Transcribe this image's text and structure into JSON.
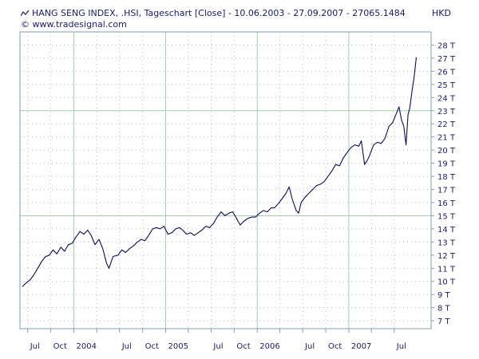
{
  "header": {
    "title": "HANG SENG INDEX, .HSI, Tageschart [Close] - 10.06.2003 - 27.09.2007 - 27065.1484",
    "copyright": "© www.tradesignal.com",
    "currency": "HKD"
  },
  "colors": {
    "line": "#0a0a5e",
    "grid_dot": "#b8b8b8",
    "grid_major": "#a8cca8",
    "frame": "#7f9db9",
    "text": "#1a1a6e"
  },
  "chart_data": {
    "type": "line",
    "title": "HANG SENG INDEX, .HSI, Tageschart [Close] - 10.06.2003 - 27.09.2007 - 27065.1484",
    "ylabel": "HKD",
    "xlabel": "",
    "ylim": [
      6.4,
      29.0
    ],
    "xlim": [
      "2003-05-31",
      "2007-11-25"
    ],
    "grid": true,
    "legend": "none",
    "y_ticks": [
      {
        "value": 7,
        "label": "7 T"
      },
      {
        "value": 8,
        "label": "8 T"
      },
      {
        "value": 9,
        "label": "9 T"
      },
      {
        "value": 10,
        "label": "10 T"
      },
      {
        "value": 11,
        "label": "11 T"
      },
      {
        "value": 12,
        "label": "12 T"
      },
      {
        "value": 13,
        "label": "13 T"
      },
      {
        "value": 14,
        "label": "14 T"
      },
      {
        "value": 15,
        "label": "15 T"
      },
      {
        "value": 16,
        "label": "16 T"
      },
      {
        "value": 17,
        "label": "17 T"
      },
      {
        "value": 18,
        "label": "18 T"
      },
      {
        "value": 19,
        "label": "19 T"
      },
      {
        "value": 20,
        "label": "20 T"
      },
      {
        "value": 21,
        "label": "21 T"
      },
      {
        "value": 22,
        "label": "22 T"
      },
      {
        "value": 23,
        "label": "23 T"
      },
      {
        "value": 24,
        "label": "24 T"
      },
      {
        "value": 25,
        "label": "25 T"
      },
      {
        "value": 26,
        "label": "26 T"
      },
      {
        "value": 27,
        "label": "27 T"
      },
      {
        "value": 28,
        "label": "28 T"
      }
    ],
    "y_major_lines": [
      15,
      23
    ],
    "x_ticks": [
      {
        "date": "2003-07-01",
        "label": "Jul",
        "major": false
      },
      {
        "date": "2003-10-01",
        "label": "Oct",
        "major": false
      },
      {
        "date": "2004-01-01",
        "label": "2004",
        "major": true
      },
      {
        "date": "2004-04-01",
        "label": "",
        "major": false
      },
      {
        "date": "2004-07-01",
        "label": "Jul",
        "major": false
      },
      {
        "date": "2004-10-01",
        "label": "Oct",
        "major": false
      },
      {
        "date": "2005-01-01",
        "label": "2005",
        "major": true
      },
      {
        "date": "2005-04-01",
        "label": "",
        "major": false
      },
      {
        "date": "2005-07-01",
        "label": "Jul",
        "major": false
      },
      {
        "date": "2005-10-01",
        "label": "Oct",
        "major": false
      },
      {
        "date": "2006-01-01",
        "label": "2006",
        "major": true
      },
      {
        "date": "2006-04-01",
        "label": "",
        "major": false
      },
      {
        "date": "2006-07-01",
        "label": "Jul",
        "major": false
      },
      {
        "date": "2006-10-01",
        "label": "Oct",
        "major": false
      },
      {
        "date": "2007-01-01",
        "label": "2007",
        "major": true
      },
      {
        "date": "2007-04-01",
        "label": "",
        "major": false
      },
      {
        "date": "2007-07-01",
        "label": "Jul",
        "major": false
      }
    ],
    "series": [
      {
        "color": "#0a0a5e",
        "points": [
          [
            "2003-06-10",
            9.6
          ],
          [
            "2003-06-25",
            9.9
          ],
          [
            "2003-07-10",
            10.1
          ],
          [
            "2003-07-25",
            10.5
          ],
          [
            "2003-08-10",
            11.0
          ],
          [
            "2003-08-25",
            11.5
          ],
          [
            "2003-09-10",
            11.9
          ],
          [
            "2003-09-25",
            12.0
          ],
          [
            "2003-10-10",
            12.4
          ],
          [
            "2003-10-25",
            12.1
          ],
          [
            "2003-11-10",
            12.6
          ],
          [
            "2003-11-25",
            12.3
          ],
          [
            "2003-12-10",
            12.8
          ],
          [
            "2003-12-25",
            12.9
          ],
          [
            "2004-01-10",
            13.4
          ],
          [
            "2004-01-25",
            13.8
          ],
          [
            "2004-02-10",
            13.6
          ],
          [
            "2004-02-25",
            13.9
          ],
          [
            "2004-03-10",
            13.5
          ],
          [
            "2004-03-25",
            12.8
          ],
          [
            "2004-04-10",
            13.2
          ],
          [
            "2004-04-25",
            12.5
          ],
          [
            "2004-05-10",
            11.4
          ],
          [
            "2004-05-20",
            11.0
          ],
          [
            "2004-06-05",
            11.9
          ],
          [
            "2004-06-25",
            12.0
          ],
          [
            "2004-07-10",
            12.4
          ],
          [
            "2004-07-25",
            12.2
          ],
          [
            "2004-08-10",
            12.5
          ],
          [
            "2004-08-25",
            12.7
          ],
          [
            "2004-09-10",
            13.0
          ],
          [
            "2004-09-25",
            13.2
          ],
          [
            "2004-10-10",
            13.1
          ],
          [
            "2004-10-25",
            13.5
          ],
          [
            "2004-11-10",
            14.0
          ],
          [
            "2004-11-25",
            14.1
          ],
          [
            "2004-12-10",
            14.0
          ],
          [
            "2004-12-25",
            14.2
          ],
          [
            "2005-01-10",
            13.6
          ],
          [
            "2005-01-25",
            13.7
          ],
          [
            "2005-02-10",
            14.0
          ],
          [
            "2005-02-25",
            14.1
          ],
          [
            "2005-03-10",
            13.9
          ],
          [
            "2005-03-25",
            13.6
          ],
          [
            "2005-04-10",
            13.7
          ],
          [
            "2005-04-25",
            13.5
          ],
          [
            "2005-05-10",
            13.7
          ],
          [
            "2005-05-25",
            13.9
          ],
          [
            "2005-06-10",
            14.2
          ],
          [
            "2005-06-25",
            14.1
          ],
          [
            "2005-07-10",
            14.4
          ],
          [
            "2005-07-25",
            14.9
          ],
          [
            "2005-08-10",
            15.3
          ],
          [
            "2005-08-25",
            15.0
          ],
          [
            "2005-09-10",
            15.2
          ],
          [
            "2005-09-25",
            15.3
          ],
          [
            "2005-10-10",
            14.8
          ],
          [
            "2005-10-25",
            14.3
          ],
          [
            "2005-11-10",
            14.6
          ],
          [
            "2005-11-25",
            14.8
          ],
          [
            "2005-12-10",
            14.9
          ],
          [
            "2005-12-25",
            14.9
          ],
          [
            "2006-01-10",
            15.2
          ],
          [
            "2006-01-25",
            15.4
          ],
          [
            "2006-02-10",
            15.3
          ],
          [
            "2006-02-25",
            15.6
          ],
          [
            "2006-03-10",
            15.6
          ],
          [
            "2006-03-25",
            15.9
          ],
          [
            "2006-04-10",
            16.3
          ],
          [
            "2006-04-25",
            16.7
          ],
          [
            "2006-05-08",
            17.2
          ],
          [
            "2006-05-20",
            16.3
          ],
          [
            "2006-06-05",
            15.4
          ],
          [
            "2006-06-15",
            15.2
          ],
          [
            "2006-06-25",
            16.0
          ],
          [
            "2006-07-10",
            16.4
          ],
          [
            "2006-07-25",
            16.7
          ],
          [
            "2006-08-10",
            17.0
          ],
          [
            "2006-08-25",
            17.3
          ],
          [
            "2006-09-10",
            17.4
          ],
          [
            "2006-09-25",
            17.6
          ],
          [
            "2006-10-10",
            18.0
          ],
          [
            "2006-10-25",
            18.4
          ],
          [
            "2006-11-10",
            18.9
          ],
          [
            "2006-11-25",
            18.8
          ],
          [
            "2006-12-10",
            19.4
          ],
          [
            "2006-12-25",
            19.8
          ],
          [
            "2007-01-10",
            20.2
          ],
          [
            "2007-01-25",
            20.4
          ],
          [
            "2007-02-10",
            20.3
          ],
          [
            "2007-02-20",
            20.7
          ],
          [
            "2007-03-05",
            18.9
          ],
          [
            "2007-03-15",
            19.2
          ],
          [
            "2007-03-25",
            19.6
          ],
          [
            "2007-04-10",
            20.4
          ],
          [
            "2007-04-25",
            20.6
          ],
          [
            "2007-05-10",
            20.5
          ],
          [
            "2007-05-25",
            20.9
          ],
          [
            "2007-06-10",
            21.8
          ],
          [
            "2007-06-25",
            22.1
          ],
          [
            "2007-07-10",
            22.8
          ],
          [
            "2007-07-20",
            23.3
          ],
          [
            "2007-07-30",
            22.3
          ],
          [
            "2007-08-08",
            21.8
          ],
          [
            "2007-08-17",
            20.4
          ],
          [
            "2007-08-25",
            22.7
          ],
          [
            "2007-09-01",
            23.2
          ],
          [
            "2007-09-10",
            24.5
          ],
          [
            "2007-09-18",
            25.5
          ],
          [
            "2007-09-27",
            27.07
          ]
        ]
      }
    ]
  }
}
